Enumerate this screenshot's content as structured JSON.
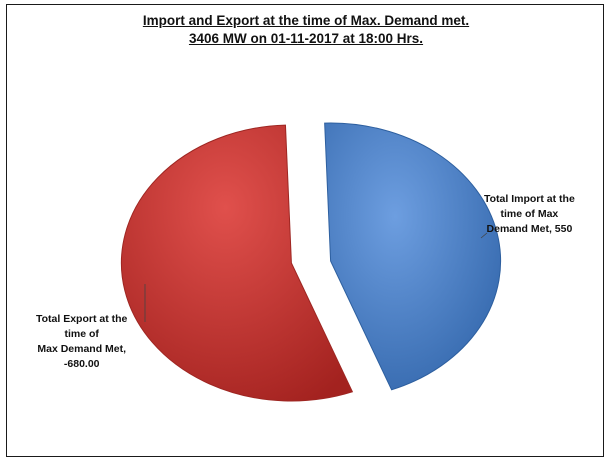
{
  "chart_data": {
    "type": "pie",
    "title_line1": "Import and Export at the time of Max. Demand met.",
    "title_line2": "3406 MW on 01-11-2017 at 18:00 Hrs.",
    "slices": [
      {
        "label_lines": [
          "Total Import at the",
          "time of Max",
          "Demand Met, 550"
        ],
        "value": 550,
        "color": "#4a80cc",
        "color_dark": "#2d5f9f"
      },
      {
        "label_lines": [
          "Total Export at the",
          "time of",
          "Max Demand Met,",
          "-680.00"
        ],
        "value": -680.0,
        "color": "#cf3f3b",
        "color_dark": "#9e2622"
      }
    ]
  }
}
